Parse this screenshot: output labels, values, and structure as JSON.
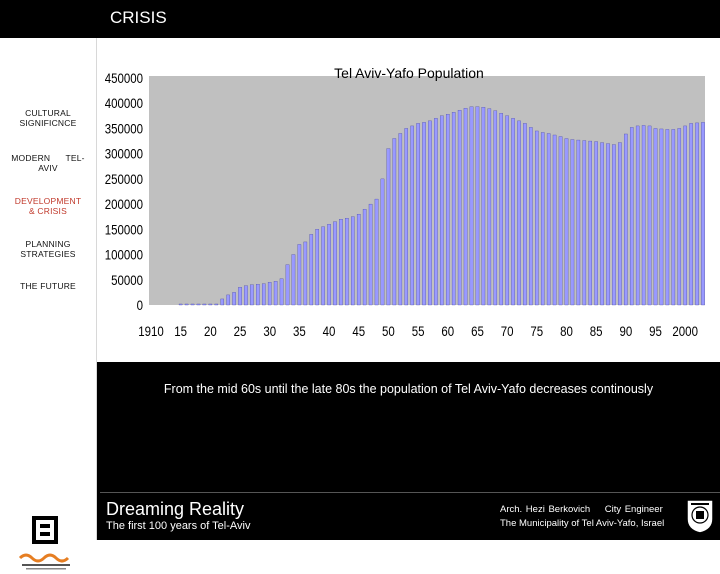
{
  "header": {
    "title": "CRISIS"
  },
  "sidebar": {
    "items": [
      {
        "line1": "CULTURAL",
        "line2": "SIGNIFICNCE"
      },
      {
        "line1": "MODERN      TEL-",
        "line2": "AVIV"
      },
      {
        "line1": "DEVELOPMENT",
        "line2": "& CRISIS"
      },
      {
        "line1": "PLANNING",
        "line2": "STRATEGIES"
      },
      {
        "line1": "THE FUTURE",
        "line2": ""
      }
    ]
  },
  "caption": "From the mid 60s until the late 80s the population of Tel Aviv-Yafo decreases continously",
  "footer": {
    "brand_title": "Dreaming Reality",
    "brand_subtitle": "The first 100 years of Tel-Aviv",
    "credit_line1": "Arch. Hezi Berkovich    City Engineer",
    "credit_line2": "The Municipality of Tel Aviv-Yafo, Israel"
  },
  "colors": {
    "plot_bg": "#c0c0c0",
    "bar_fill": "#9999ff",
    "accent": "#c0392b"
  },
  "chart_data": {
    "type": "bar",
    "title": "Tel Aviv-Yafo Population",
    "xlabel": "",
    "ylabel": "",
    "ylim": [
      0,
      450000
    ],
    "yticks": [
      0,
      50000,
      100000,
      150000,
      200000,
      250000,
      300000,
      350000,
      400000,
      450000
    ],
    "xtick_labels": [
      {
        "year": 1910,
        "label": "1910"
      },
      {
        "year": 1915,
        "label": "15"
      },
      {
        "year": 1920,
        "label": "20"
      },
      {
        "year": 1925,
        "label": "25"
      },
      {
        "year": 1930,
        "label": "30"
      },
      {
        "year": 1935,
        "label": "35"
      },
      {
        "year": 1940,
        "label": "40"
      },
      {
        "year": 1945,
        "label": "45"
      },
      {
        "year": 1950,
        "label": "50"
      },
      {
        "year": 1955,
        "label": "55"
      },
      {
        "year": 1960,
        "label": "60"
      },
      {
        "year": 1965,
        "label": "65"
      },
      {
        "year": 1970,
        "label": "70"
      },
      {
        "year": 1975,
        "label": "75"
      },
      {
        "year": 1980,
        "label": "80"
      },
      {
        "year": 1985,
        "label": "85"
      },
      {
        "year": 1990,
        "label": "90"
      },
      {
        "year": 1995,
        "label": "95"
      },
      {
        "year": 2000,
        "label": "2000"
      }
    ],
    "x_start": 1910,
    "x_end": 2003,
    "grid": false,
    "legend": "none",
    "series": [
      {
        "points": [
          {
            "x": 1915,
            "y": 2000
          },
          {
            "x": 1916,
            "y": 2000
          },
          {
            "x": 1917,
            "y": 2000
          },
          {
            "x": 1918,
            "y": 2000
          },
          {
            "x": 1919,
            "y": 2000
          },
          {
            "x": 1920,
            "y": 2000
          },
          {
            "x": 1921,
            "y": 2000
          },
          {
            "x": 1922,
            "y": 12000
          },
          {
            "x": 1923,
            "y": 20000
          },
          {
            "x": 1924,
            "y": 25000
          },
          {
            "x": 1925,
            "y": 35000
          },
          {
            "x": 1926,
            "y": 38000
          },
          {
            "x": 1927,
            "y": 40000
          },
          {
            "x": 1928,
            "y": 41000
          },
          {
            "x": 1929,
            "y": 42000
          },
          {
            "x": 1930,
            "y": 45000
          },
          {
            "x": 1931,
            "y": 47000
          },
          {
            "x": 1932,
            "y": 52000
          },
          {
            "x": 1933,
            "y": 80000
          },
          {
            "x": 1934,
            "y": 100000
          },
          {
            "x": 1935,
            "y": 120000
          },
          {
            "x": 1936,
            "y": 125000
          },
          {
            "x": 1937,
            "y": 140000
          },
          {
            "x": 1938,
            "y": 150000
          },
          {
            "x": 1939,
            "y": 155000
          },
          {
            "x": 1940,
            "y": 160000
          },
          {
            "x": 1941,
            "y": 165000
          },
          {
            "x": 1942,
            "y": 170000
          },
          {
            "x": 1943,
            "y": 172000
          },
          {
            "x": 1944,
            "y": 175000
          },
          {
            "x": 1945,
            "y": 180000
          },
          {
            "x": 1946,
            "y": 190000
          },
          {
            "x": 1947,
            "y": 200000
          },
          {
            "x": 1948,
            "y": 210000
          },
          {
            "x": 1949,
            "y": 250000
          },
          {
            "x": 1950,
            "y": 310000
          },
          {
            "x": 1951,
            "y": 330000
          },
          {
            "x": 1952,
            "y": 340000
          },
          {
            "x": 1953,
            "y": 350000
          },
          {
            "x": 1954,
            "y": 355000
          },
          {
            "x": 1955,
            "y": 360000
          },
          {
            "x": 1956,
            "y": 362000
          },
          {
            "x": 1957,
            "y": 365000
          },
          {
            "x": 1958,
            "y": 370000
          },
          {
            "x": 1959,
            "y": 375000
          },
          {
            "x": 1960,
            "y": 378000
          },
          {
            "x": 1961,
            "y": 382000
          },
          {
            "x": 1962,
            "y": 386000
          },
          {
            "x": 1963,
            "y": 390000
          },
          {
            "x": 1964,
            "y": 393000
          },
          {
            "x": 1965,
            "y": 393000
          },
          {
            "x": 1966,
            "y": 392000
          },
          {
            "x": 1967,
            "y": 389000
          },
          {
            "x": 1968,
            "y": 385000
          },
          {
            "x": 1969,
            "y": 380000
          },
          {
            "x": 1970,
            "y": 375000
          },
          {
            "x": 1971,
            "y": 370000
          },
          {
            "x": 1972,
            "y": 365000
          },
          {
            "x": 1973,
            "y": 360000
          },
          {
            "x": 1974,
            "y": 352000
          },
          {
            "x": 1975,
            "y": 345000
          },
          {
            "x": 1976,
            "y": 342000
          },
          {
            "x": 1977,
            "y": 340000
          },
          {
            "x": 1978,
            "y": 337000
          },
          {
            "x": 1979,
            "y": 334000
          },
          {
            "x": 1980,
            "y": 330000
          },
          {
            "x": 1981,
            "y": 328000
          },
          {
            "x": 1982,
            "y": 327000
          },
          {
            "x": 1983,
            "y": 326000
          },
          {
            "x": 1984,
            "y": 325000
          },
          {
            "x": 1985,
            "y": 324000
          },
          {
            "x": 1986,
            "y": 322000
          },
          {
            "x": 1987,
            "y": 320000
          },
          {
            "x": 1988,
            "y": 318000
          },
          {
            "x": 1989,
            "y": 322000
          },
          {
            "x": 1990,
            "y": 339000
          },
          {
            "x": 1991,
            "y": 352000
          },
          {
            "x": 1992,
            "y": 355000
          },
          {
            "x": 1993,
            "y": 356000
          },
          {
            "x": 1994,
            "y": 355000
          },
          {
            "x": 1995,
            "y": 350000
          },
          {
            "x": 1996,
            "y": 349000
          },
          {
            "x": 1997,
            "y": 348000
          },
          {
            "x": 1998,
            "y": 348000
          },
          {
            "x": 1999,
            "y": 350000
          },
          {
            "x": 2000,
            "y": 355000
          },
          {
            "x": 2001,
            "y": 360000
          },
          {
            "x": 2002,
            "y": 361000
          },
          {
            "x": 2003,
            "y": 362000
          }
        ]
      }
    ]
  }
}
